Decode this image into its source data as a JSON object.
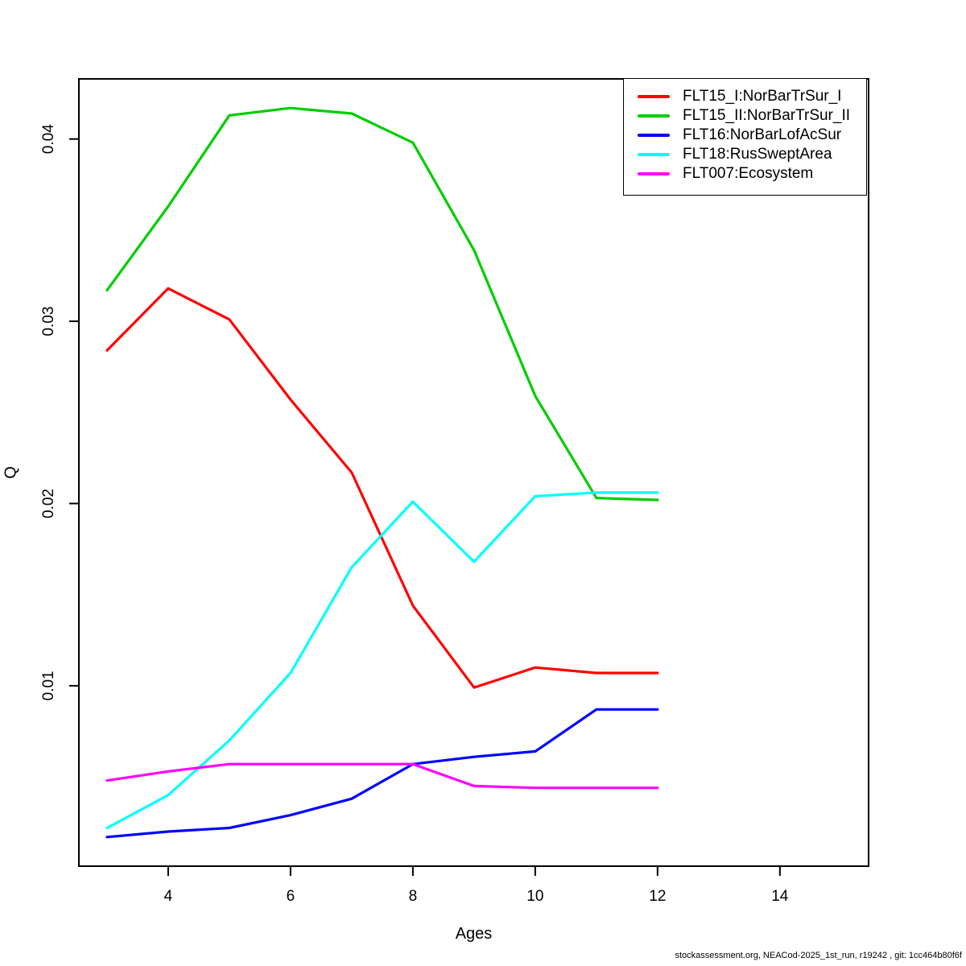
{
  "chart_data": {
    "type": "line",
    "title": "",
    "xlabel": "Ages",
    "ylabel": "Q",
    "x": [
      3,
      4,
      5,
      6,
      7,
      8,
      9,
      10,
      11,
      12
    ],
    "series": [
      {
        "name": "FLT15_I:NorBarTrSur_I",
        "color": "#FF0000",
        "values": [
          0.0284,
          0.0318,
          0.0301,
          0.0257,
          0.0217,
          0.0144,
          0.0099,
          0.011,
          0.0107,
          0.0107
        ]
      },
      {
        "name": "FLT15_II:NorBarTrSur_II",
        "color": "#00CD00",
        "values": [
          0.0317,
          0.0363,
          0.0413,
          0.0417,
          0.0414,
          0.0398,
          0.0339,
          0.0259,
          0.0203,
          0.0202
        ]
      },
      {
        "name": "FLT16:NorBarLofAcSur",
        "color": "#0000FF",
        "values": [
          0.0017,
          0.002,
          0.0022,
          0.0029,
          0.0038,
          0.0057,
          0.0061,
          0.0064,
          0.0087,
          0.0087
        ]
      },
      {
        "name": "FLT18:RusSweptArea",
        "color": "#00FFFF",
        "values": [
          0.0022,
          0.004,
          0.007,
          0.0107,
          0.0165,
          0.0201,
          0.0168,
          0.0204,
          0.0206,
          0.0206
        ]
      },
      {
        "name": "FLT007:Ecosystem",
        "color": "#FF00FF",
        "values": [
          0.0048,
          0.0053,
          0.0057,
          0.0057,
          0.0057,
          0.0057,
          0.0045,
          0.0044,
          0.0044,
          0.0044
        ]
      }
    ],
    "x_tick_labels": [
      "4",
      "6",
      "8",
      "10",
      "12",
      "14"
    ],
    "x_tick_values": [
      4,
      6,
      8,
      10,
      12,
      14
    ],
    "y_tick_labels": [
      "0.01",
      "0.02",
      "0.03",
      "0.04"
    ],
    "y_tick_values": [
      0.01,
      0.02,
      0.03,
      0.04
    ],
    "xlim": [
      2.54,
      15.45
    ],
    "ylim": [
      0.0001,
      0.0433
    ],
    "grid": false,
    "legend_position": "top-right"
  },
  "footer": {
    "text": "stockassessment.org, NEACod-2025_1st_run, r19242 , git: 1cc464b80f6f"
  }
}
